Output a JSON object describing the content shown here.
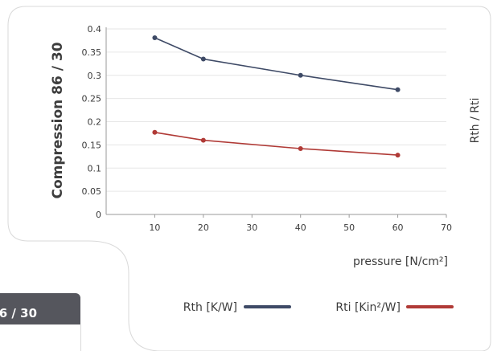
{
  "tab": {
    "label": "6 / 30"
  },
  "chart_data": {
    "type": "line",
    "ylabel": "Compression 86 / 30",
    "y2label": "Rth / Rti",
    "xlabel": "pressure [N/cm²]",
    "xlim": [
      0,
      70
    ],
    "ylim": [
      0,
      0.4
    ],
    "x_ticks": [
      "10",
      "20",
      "30",
      "40",
      "50",
      "60",
      "70"
    ],
    "y_ticks": [
      "0",
      "0.05",
      "0.1",
      "0.15",
      "0.2",
      "0.25",
      "0.3",
      "0.35",
      "0.4"
    ],
    "grid": true,
    "legend_position": "bottom",
    "series": [
      {
        "name": "Rth [K/W]",
        "color": "#3e4a66",
        "x": [
          10,
          20,
          40,
          60
        ],
        "y": [
          0.381,
          0.335,
          0.3,
          0.269
        ]
      },
      {
        "name": "Rti [Kin²/W]",
        "color": "#b03a36",
        "x": [
          10,
          20,
          40,
          60
        ],
        "y": [
          0.177,
          0.16,
          0.142,
          0.128
        ]
      }
    ]
  }
}
